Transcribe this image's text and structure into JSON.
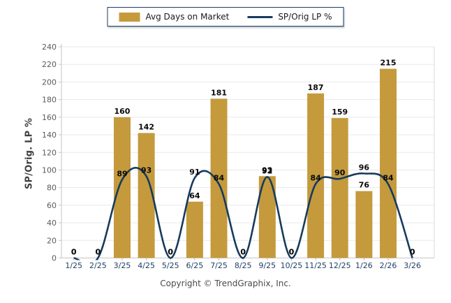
{
  "footer": {
    "copyright": "Copyright © TrendGraphix, Inc."
  },
  "colors": {
    "bar": "#C49A3D",
    "line": "#163B5D",
    "grid": "#E9E9E9",
    "axis": "#C6C6C6",
    "x_label": "#1F3F66",
    "y_label": "#5A5A5A",
    "value_label": "#0A0A0A"
  },
  "chart_data": {
    "type": "bar",
    "title": "",
    "xlabel": "",
    "ylabel": "SP/Orig. LP %",
    "ylim": [
      0,
      240
    ],
    "ytick_step": 20,
    "yticks": [
      0,
      20,
      40,
      60,
      80,
      100,
      120,
      140,
      160,
      180,
      200,
      220,
      240
    ],
    "grid": true,
    "legend_position": "top-center",
    "categories": [
      "1/25",
      "2/25",
      "3/25",
      "4/25",
      "5/25",
      "6/25",
      "7/25",
      "8/25",
      "9/25",
      "10/25",
      "11/25",
      "12/25",
      "1/26",
      "2/26",
      "3/26"
    ],
    "series": [
      {
        "name": "Avg Days on Market",
        "type": "bar",
        "color": "#C49A3D",
        "values": [
          0,
          0,
          160,
          142,
          0,
          64,
          181,
          0,
          93,
          0,
          187,
          159,
          76,
          215,
          0
        ]
      },
      {
        "name": "SP/Orig LP %",
        "type": "line",
        "color": "#163B5D",
        "values": [
          0,
          0,
          89,
          93,
          0,
          91,
          84,
          0,
          92,
          0,
          84,
          90,
          96,
          84,
          0
        ]
      }
    ]
  }
}
